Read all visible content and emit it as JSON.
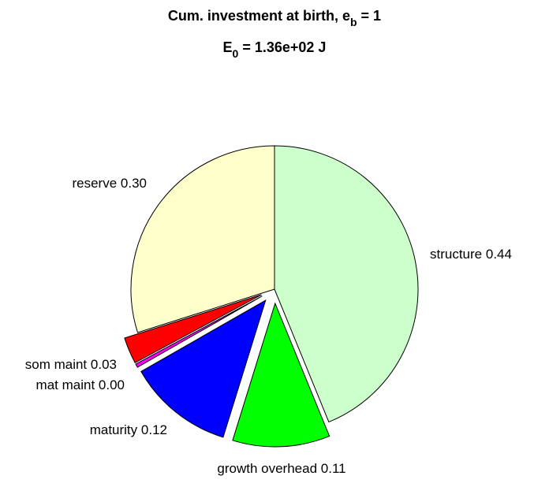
{
  "chart_data": {
    "type": "pie",
    "title": {
      "text": "Cum. investment at birth, e",
      "subscript": "b",
      "suffix": " = 1"
    },
    "subtitle": {
      "text": "E",
      "subscript": "0",
      "suffix": " = 1.36e+02 J"
    },
    "categories": [
      "structure",
      "growth overhead",
      "maturity",
      "mat maint",
      "som maint",
      "reserve"
    ],
    "values": [
      0.44,
      0.11,
      0.12,
      0.004,
      0.03,
      0.3
    ],
    "value_labels": [
      "0.44",
      "0.11",
      "0.12",
      "0.00",
      "0.03",
      "0.30"
    ],
    "colors": [
      "#ccffcc",
      "#00ff00",
      "#0000ff",
      "#ff00ff",
      "#ff0000",
      "#ffffcc"
    ]
  }
}
